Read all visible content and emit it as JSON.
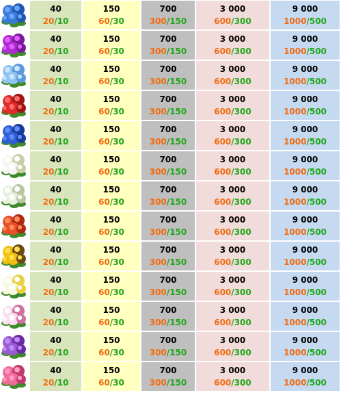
{
  "colors": {
    "col1_bg": "#d8e4bc",
    "col2_bg": "#ffffc0",
    "col3_bg": "#bfbfbf",
    "col4_bg": "#f2dcdb",
    "col5_bg": "#c5d9f1",
    "orange": "#f26b0f",
    "green": "#22a61b"
  },
  "rows": [
    {
      "icon": "blue-hydrangea-flower-icon",
      "c1": "40",
      "c1a": "20",
      "c1b": "10",
      "c2": "150",
      "c2a": "60",
      "c2b": "30",
      "c3": "700",
      "c3a": "300",
      "c3b": "150",
      "c4": "3 000",
      "c4a": "600",
      "c4b": "300",
      "c5": "9 000",
      "c5a": "1000",
      "c5b": "500"
    },
    {
      "icon": "purple-hydrangea-flower-icon",
      "c1": "40",
      "c1a": "20",
      "c1b": "10",
      "c2": "150",
      "c2a": "60",
      "c2b": "30",
      "c3": "700",
      "c3a": "300",
      "c3b": "150",
      "c4": "3 000",
      "c4a": "600",
      "c4b": "300",
      "c5": "9 000",
      "c5a": "1000",
      "c5b": "500"
    },
    {
      "icon": "light-blue-flower-icon",
      "c1": "40",
      "c1a": "20",
      "c1b": "10",
      "c2": "150",
      "c2a": "60",
      "c2b": "30",
      "c3": "700",
      "c3a": "300",
      "c3b": "150",
      "c4": "3 000",
      "c4a": "600",
      "c4b": "300",
      "c5": "9 000",
      "c5a": "1000",
      "c5b": "500"
    },
    {
      "icon": "red-rose-flower-icon",
      "c1": "40",
      "c1a": "20",
      "c1b": "10",
      "c2": "150",
      "c2a": "60",
      "c2b": "30",
      "c3": "700",
      "c3a": "300",
      "c3b": "150",
      "c4": "3 000",
      "c4a": "600",
      "c4b": "300",
      "c5": "9 000",
      "c5a": "1000",
      "c5b": "500"
    },
    {
      "icon": "royal-blue-flower-icon",
      "c1": "40",
      "c1a": "20",
      "c1b": "10",
      "c2": "150",
      "c2a": "60",
      "c2b": "30",
      "c3": "700",
      "c3a": "300",
      "c3b": "150",
      "c4": "3 000",
      "c4a": "600",
      "c4b": "300",
      "c5": "9 000",
      "c5a": "1000",
      "c5b": "500"
    },
    {
      "icon": "white-lily-flower-icon",
      "c1": "40",
      "c1a": "20",
      "c1b": "10",
      "c2": "150",
      "c2a": "60",
      "c2b": "30",
      "c3": "700",
      "c3a": "300",
      "c3b": "150",
      "c4": "3 000",
      "c4a": "600",
      "c4b": "300",
      "c5": "9 000",
      "c5a": "1000",
      "c5b": "500"
    },
    {
      "icon": "white-green-flower-icon",
      "c1": "40",
      "c1a": "20",
      "c1b": "10",
      "c2": "150",
      "c2a": "60",
      "c2b": "30",
      "c3": "700",
      "c3a": "300",
      "c3b": "150",
      "c4": "3 000",
      "c4a": "600",
      "c4b": "300",
      "c5": "9 000",
      "c5a": "1000",
      "c5b": "500"
    },
    {
      "icon": "orange-red-flower-icon",
      "c1": "40",
      "c1a": "20",
      "c1b": "10",
      "c2": "150",
      "c2a": "60",
      "c2b": "30",
      "c3": "700",
      "c3a": "300",
      "c3b": "150",
      "c4": "3 000",
      "c4a": "600",
      "c4b": "300",
      "c5": "9 000",
      "c5a": "1000",
      "c5b": "500"
    },
    {
      "icon": "sunflower-flower-icon",
      "c1": "40",
      "c1a": "20",
      "c1b": "10",
      "c2": "150",
      "c2a": "60",
      "c2b": "30",
      "c3": "700",
      "c3a": "300",
      "c3b": "150",
      "c4": "3 000",
      "c4a": "600",
      "c4b": "300",
      "c5": "9 000",
      "c5a": "1000",
      "c5b": "500"
    },
    {
      "icon": "white-yellow-flower-icon",
      "c1": "40",
      "c1a": "20",
      "c1b": "10",
      "c2": "150",
      "c2a": "60",
      "c2b": "30",
      "c3": "700",
      "c3a": "300",
      "c3b": "150",
      "c4": "3 000",
      "c4a": "600",
      "c4b": "300",
      "c5": "9 000",
      "c5a": "1000",
      "c5b": "500"
    },
    {
      "icon": "pink-white-flower-icon",
      "c1": "40",
      "c1a": "20",
      "c1b": "10",
      "c2": "150",
      "c2a": "60",
      "c2b": "30",
      "c3": "700",
      "c3a": "300",
      "c3b": "150",
      "c4": "3 000",
      "c4a": "600",
      "c4b": "300",
      "c5": "9 000",
      "c5a": "1000",
      "c5b": "500"
    },
    {
      "icon": "lavender-flower-icon",
      "c1": "40",
      "c1a": "20",
      "c1b": "10",
      "c2": "150",
      "c2a": "60",
      "c2b": "30",
      "c3": "700",
      "c3a": "300",
      "c3b": "150",
      "c4": "3 000",
      "c4a": "600",
      "c4b": "300",
      "c5": "9 000",
      "c5a": "1000",
      "c5b": "500"
    },
    {
      "icon": "pink-flower-icon",
      "c1": "40",
      "c1a": "20",
      "c1b": "10",
      "c2": "150",
      "c2a": "60",
      "c2b": "30",
      "c3": "700",
      "c3a": "300",
      "c3b": "150",
      "c4": "3 000",
      "c4a": "600",
      "c4b": "300",
      "c5": "9 000",
      "c5a": "1000",
      "c5b": "500"
    }
  ]
}
